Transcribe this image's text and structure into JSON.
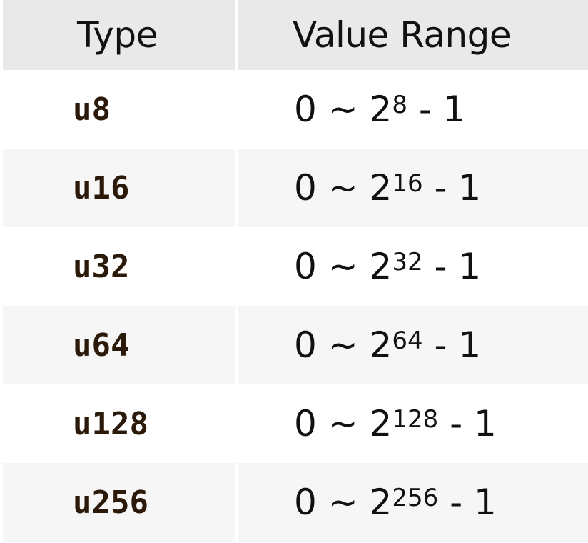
{
  "header": {
    "type_label": "Type",
    "range_label": "Value Range"
  },
  "rows": [
    {
      "type": "u8",
      "range_prefix": "0 ~ 2",
      "exponent": "8",
      "range_suffix": " - 1"
    },
    {
      "type": "u16",
      "range_prefix": "0 ~ 2",
      "exponent": "16",
      "range_suffix": " - 1"
    },
    {
      "type": "u32",
      "range_prefix": "0 ~ 2",
      "exponent": "32",
      "range_suffix": " - 1"
    },
    {
      "type": "u64",
      "range_prefix": "0 ~ 2",
      "exponent": "64",
      "range_suffix": " - 1"
    },
    {
      "type": "u128",
      "range_prefix": "0 ~ 2",
      "exponent": "128",
      "range_suffix": " - 1"
    },
    {
      "type": "u256",
      "range_prefix": "0 ~ 2",
      "exponent": "256",
      "range_suffix": " - 1"
    }
  ],
  "colors": {
    "header_bg": "#e9e9e9",
    "row_alt_bg": "#f6f6f6",
    "type_text": "#2b1a0a"
  }
}
